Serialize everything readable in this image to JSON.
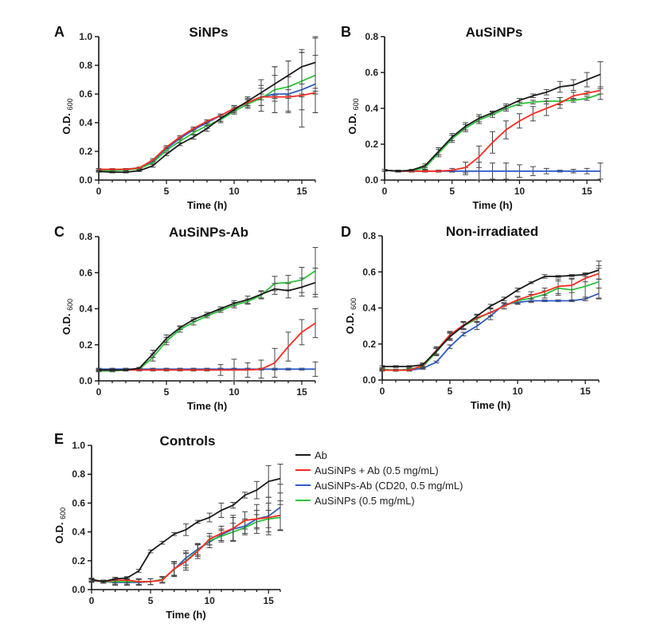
{
  "colors": {
    "Ab": "#1a1a1a",
    "AuSiNPs + Ab": "#ff2a1f",
    "AuSiNPs-Ab": "#2e5cc8",
    "AuSiNPs": "#2cc43c"
  },
  "legend": [
    {
      "key": "Ab",
      "label": "Ab",
      "color": "#1a1a1a"
    },
    {
      "key": "AuSiNPs + Ab",
      "label": "AuSiNPs + Ab (0.5 mg/mL)",
      "color": "#ff2a1f"
    },
    {
      "key": "AuSiNPs-Ab",
      "label": "AuSiNPs-Ab (CD20, 0.5 mg/mL)",
      "color": "#2e5cc8"
    },
    {
      "key": "AuSiNPs",
      "label": "AuSiNPs (0.5 mg/mL)",
      "color": "#2cc43c"
    }
  ],
  "chart_data": [
    {
      "panel": "A",
      "type": "line",
      "title": "SiNPs",
      "xlabel": "Time (h)",
      "ylabel": "O.D.",
      "ylabel_sub": "600",
      "xlim": [
        0,
        16
      ],
      "ylim": [
        0,
        1.0
      ],
      "xticks": [
        0,
        5,
        10,
        15
      ],
      "yticks": [
        "0.0",
        "0.2",
        "0.4",
        "0.6",
        "0.8",
        "1.0"
      ],
      "x": [
        0,
        1,
        2,
        3,
        4,
        5,
        6,
        7,
        8,
        9,
        10,
        11,
        12,
        13,
        14,
        15,
        16
      ],
      "series": [
        {
          "name": "Ab",
          "values": [
            0.06,
            0.055,
            0.055,
            0.065,
            0.1,
            0.18,
            0.25,
            0.3,
            0.36,
            0.43,
            0.49,
            0.55,
            0.61,
            0.67,
            0.73,
            0.79,
            0.82
          ],
          "err": [
            0.005,
            0.005,
            0.005,
            0.005,
            0.01,
            0.01,
            0.01,
            0.015,
            0.02,
            0.02,
            0.02,
            0.03,
            0.09,
            0.12,
            0.1,
            0.12,
            0.18
          ]
        },
        {
          "name": "AuSiNPs + Ab",
          "values": [
            0.075,
            0.075,
            0.075,
            0.085,
            0.14,
            0.23,
            0.3,
            0.36,
            0.41,
            0.45,
            0.5,
            0.54,
            0.58,
            0.58,
            0.58,
            0.59,
            0.61
          ],
          "err": [
            0.005,
            0.005,
            0.005,
            0.005,
            0.01,
            0.01,
            0.01,
            0.01,
            0.01,
            0.01,
            0.02,
            0.02,
            0.02,
            0.01,
            0.01,
            0.01,
            0.01
          ]
        },
        {
          "name": "AuSiNPs-Ab",
          "values": [
            0.075,
            0.07,
            0.075,
            0.085,
            0.13,
            0.22,
            0.29,
            0.35,
            0.4,
            0.45,
            0.5,
            0.54,
            0.58,
            0.6,
            0.6,
            0.63,
            0.67
          ],
          "err": [
            0.005,
            0.005,
            0.005,
            0.005,
            0.01,
            0.01,
            0.01,
            0.01,
            0.01,
            0.01,
            0.02,
            0.03,
            0.06,
            0.13,
            0.12,
            0.26,
            0.2
          ]
        },
        {
          "name": "AuSiNPs",
          "values": [
            0.065,
            0.065,
            0.07,
            0.08,
            0.12,
            0.21,
            0.27,
            0.33,
            0.38,
            0.42,
            0.48,
            0.53,
            0.57,
            0.63,
            0.65,
            0.69,
            0.73
          ],
          "err": [
            0.005,
            0.005,
            0.005,
            0.005,
            0.01,
            0.01,
            0.01,
            0.01,
            0.02,
            0.02,
            0.02,
            0.03,
            0.09,
            0.16,
            0.18,
            0.2,
            0.26
          ]
        }
      ]
    },
    {
      "panel": "B",
      "type": "line",
      "title": "AuSiNPs",
      "xlabel": "Time (h)",
      "ylabel": "O.D.",
      "ylabel_sub": "600",
      "xlim": [
        0,
        16
      ],
      "ylim": [
        0,
        0.8
      ],
      "xticks": [
        0,
        5,
        10,
        15
      ],
      "yticks": [
        "0.0",
        "0.2",
        "0.4",
        "0.6",
        "0.8"
      ],
      "x": [
        0,
        1,
        2,
        3,
        4,
        5,
        6,
        7,
        8,
        9,
        10,
        11,
        12,
        13,
        14,
        15,
        16
      ],
      "series": [
        {
          "name": "Ab",
          "values": [
            0.055,
            0.05,
            0.055,
            0.08,
            0.16,
            0.24,
            0.3,
            0.345,
            0.375,
            0.41,
            0.445,
            0.47,
            0.49,
            0.52,
            0.53,
            0.56,
            0.59
          ],
          "err": [
            0.005,
            0.005,
            0.005,
            0.01,
            0.02,
            0.02,
            0.02,
            0.02,
            0.01,
            0.015,
            0.01,
            0.01,
            0.015,
            0.03,
            0.03,
            0.04,
            0.07
          ]
        },
        {
          "name": "AuSiNPs + Ab",
          "values": [
            0.055,
            0.05,
            0.05,
            0.05,
            0.05,
            0.055,
            0.07,
            0.13,
            0.21,
            0.28,
            0.33,
            0.37,
            0.4,
            0.43,
            0.47,
            0.485,
            0.5
          ],
          "err": [
            0.005,
            0.005,
            0.005,
            0.005,
            0.005,
            0.01,
            0.03,
            0.06,
            0.06,
            0.05,
            0.04,
            0.04,
            0.04,
            0.03,
            0.02,
            0.01,
            0.02
          ]
        },
        {
          "name": "AuSiNPs-Ab",
          "values": [
            0.055,
            0.05,
            0.05,
            0.05,
            0.05,
            0.05,
            0.05,
            0.05,
            0.05,
            0.05,
            0.05,
            0.05,
            0.05,
            0.05,
            0.05,
            0.05,
            0.05
          ],
          "err": [
            0.005,
            0.005,
            0.005,
            0.005,
            0.005,
            0.005,
            0.02,
            0.05,
            0.045,
            0.045,
            0.035,
            0.025,
            0.015,
            0.005,
            0.01,
            0.015,
            0.045
          ]
        },
        {
          "name": "AuSiNPs",
          "values": [
            0.055,
            0.05,
            0.05,
            0.07,
            0.15,
            0.23,
            0.29,
            0.335,
            0.365,
            0.4,
            0.425,
            0.435,
            0.44,
            0.44,
            0.445,
            0.455,
            0.48
          ],
          "err": [
            0.005,
            0.005,
            0.005,
            0.01,
            0.02,
            0.02,
            0.02,
            0.02,
            0.015,
            0.015,
            0.01,
            0.01,
            0.015,
            0.02,
            0.01,
            0.01,
            0.03
          ]
        }
      ]
    },
    {
      "panel": "C",
      "type": "line",
      "title": "AuSiNPs-Ab",
      "xlabel": "Time (h)",
      "ylabel": "O.D.",
      "ylabel_sub": "600",
      "xlim": [
        0,
        16
      ],
      "ylim": [
        0,
        0.8
      ],
      "xticks": [
        0,
        5,
        10,
        15
      ],
      "yticks": [
        "0.0",
        "0.2",
        "0.4",
        "0.6",
        "0.8"
      ],
      "x": [
        0,
        1,
        2,
        3,
        4,
        5,
        6,
        7,
        8,
        9,
        10,
        11,
        12,
        13,
        14,
        15,
        16
      ],
      "series": [
        {
          "name": "Ab",
          "values": [
            0.06,
            0.06,
            0.06,
            0.07,
            0.15,
            0.235,
            0.295,
            0.34,
            0.37,
            0.4,
            0.43,
            0.45,
            0.48,
            0.51,
            0.5,
            0.52,
            0.545
          ],
          "err": [
            0.005,
            0.005,
            0.005,
            0.005,
            0.02,
            0.02,
            0.01,
            0.01,
            0.01,
            0.01,
            0.015,
            0.02,
            0.02,
            0.03,
            0.04,
            0.05,
            0.08
          ]
        },
        {
          "name": "AuSiNPs + Ab",
          "values": [
            0.06,
            0.06,
            0.06,
            0.06,
            0.06,
            0.06,
            0.06,
            0.06,
            0.06,
            0.06,
            0.06,
            0.06,
            0.065,
            0.1,
            0.19,
            0.27,
            0.32
          ],
          "err": [
            0.005,
            0.005,
            0.005,
            0.005,
            0.005,
            0.005,
            0.005,
            0.005,
            0.005,
            0.03,
            0.06,
            0.04,
            0.05,
            0.08,
            0.08,
            0.07,
            0.08
          ]
        },
        {
          "name": "AuSiNPs-Ab",
          "values": [
            0.065,
            0.065,
            0.065,
            0.065,
            0.065,
            0.065,
            0.065,
            0.065,
            0.065,
            0.065,
            0.065,
            0.065,
            0.065,
            0.065,
            0.065,
            0.065,
            0.065
          ],
          "err": [
            0.005,
            0.005,
            0.005,
            0.005,
            0.005,
            0.005,
            0.005,
            0.005,
            0.005,
            0.005,
            0.005,
            0.005,
            0.005,
            0.005,
            0.005,
            0.005,
            0.04
          ]
        },
        {
          "name": "AuSiNPs",
          "values": [
            0.055,
            0.055,
            0.06,
            0.065,
            0.13,
            0.22,
            0.285,
            0.325,
            0.36,
            0.39,
            0.42,
            0.44,
            0.475,
            0.54,
            0.545,
            0.56,
            0.61
          ],
          "err": [
            0.005,
            0.005,
            0.005,
            0.005,
            0.02,
            0.02,
            0.015,
            0.015,
            0.01,
            0.01,
            0.015,
            0.015,
            0.02,
            0.04,
            0.04,
            0.07,
            0.13
          ]
        }
      ]
    },
    {
      "panel": "D",
      "type": "line",
      "title": "Non-irradiated",
      "xlabel": "Time (h)",
      "ylabel": "O.D.",
      "ylabel_sub": "600",
      "xlim": [
        0,
        16
      ],
      "ylim": [
        0,
        0.8
      ],
      "xticks": [
        0,
        5,
        10,
        15
      ],
      "yticks": [
        "0.0",
        "0.2",
        "0.4",
        "0.6",
        "0.8"
      ],
      "x": [
        0,
        1,
        2,
        3,
        4,
        5,
        6,
        7,
        8,
        9,
        10,
        11,
        12,
        13,
        14,
        15,
        16
      ],
      "series": [
        {
          "name": "Ab",
          "values": [
            0.075,
            0.075,
            0.075,
            0.085,
            0.16,
            0.24,
            0.3,
            0.355,
            0.41,
            0.45,
            0.5,
            0.54,
            0.575,
            0.575,
            0.58,
            0.585,
            0.61
          ],
          "err": [
            0.005,
            0.005,
            0.005,
            0.01,
            0.02,
            0.02,
            0.02,
            0.01,
            0.01,
            0.01,
            0.01,
            0.005,
            0.01,
            0.005,
            0.005,
            0.01,
            0.05
          ]
        },
        {
          "name": "AuSiNPs + Ab",
          "values": [
            0.055,
            0.055,
            0.055,
            0.08,
            0.165,
            0.25,
            0.305,
            0.345,
            0.375,
            0.41,
            0.445,
            0.47,
            0.49,
            0.52,
            0.525,
            0.565,
            0.59
          ],
          "err": [
            0.005,
            0.005,
            0.005,
            0.01,
            0.02,
            0.02,
            0.02,
            0.02,
            0.02,
            0.015,
            0.02,
            0.02,
            0.02,
            0.04,
            0.04,
            0.02,
            0.03
          ]
        },
        {
          "name": "AuSiNPs-Ab",
          "values": [
            0.055,
            0.055,
            0.055,
            0.065,
            0.1,
            0.185,
            0.255,
            0.3,
            0.355,
            0.42,
            0.43,
            0.44,
            0.44,
            0.44,
            0.44,
            0.45,
            0.48
          ],
          "err": [
            0.005,
            0.005,
            0.005,
            0.005,
            0.005,
            0.01,
            0.01,
            0.02,
            0.02,
            0.01,
            0.01,
            0.01,
            0.005,
            0.005,
            0.005,
            0.01,
            0.03
          ]
        },
        {
          "name": "AuSiNPs",
          "values": [
            0.06,
            0.055,
            0.06,
            0.075,
            0.155,
            0.245,
            0.3,
            0.34,
            0.375,
            0.41,
            0.44,
            0.455,
            0.475,
            0.51,
            0.5,
            0.52,
            0.545
          ],
          "err": [
            0.005,
            0.005,
            0.005,
            0.01,
            0.02,
            0.02,
            0.02,
            0.02,
            0.02,
            0.015,
            0.02,
            0.02,
            0.02,
            0.04,
            0.06,
            0.07,
            0.09
          ]
        }
      ]
    },
    {
      "panel": "E",
      "type": "line",
      "title": "Controls",
      "xlabel": "Time (h)",
      "ylabel": "O.D.",
      "ylabel_sub": "600",
      "xlim": [
        0,
        16
      ],
      "ylim": [
        0,
        1.0
      ],
      "xticks": [
        0,
        5,
        10,
        15
      ],
      "yticks": [
        "0.0",
        "0.2",
        "0.4",
        "0.6",
        "0.8",
        "1.0"
      ],
      "x": [
        0,
        1,
        2,
        3,
        4,
        5,
        6,
        7,
        8,
        9,
        10,
        11,
        12,
        13,
        14,
        15,
        16
      ],
      "series": [
        {
          "name": "Ab",
          "values": [
            0.07,
            0.055,
            0.075,
            0.08,
            0.13,
            0.265,
            0.325,
            0.385,
            0.415,
            0.47,
            0.5,
            0.55,
            0.585,
            0.655,
            0.69,
            0.75,
            0.77
          ],
          "err": [
            0.01,
            0.01,
            0.01,
            0.01,
            0.01,
            0.01,
            0.01,
            0.01,
            0.04,
            0.01,
            0.03,
            0.05,
            0.02,
            0.02,
            0.06,
            0.11,
            0.1
          ]
        },
        {
          "name": "AuSiNPs + Ab",
          "values": [
            0.065,
            0.055,
            0.065,
            0.065,
            0.055,
            0.055,
            0.065,
            0.145,
            0.195,
            0.265,
            0.35,
            0.39,
            0.425,
            0.48,
            0.49,
            0.5,
            0.515
          ],
          "err": [
            0.01,
            0.01,
            0.02,
            0.02,
            0.02,
            0.02,
            0.02,
            0.05,
            0.06,
            0.05,
            0.04,
            0.05,
            0.09,
            0.06,
            0.1,
            0.1,
            0.1
          ]
        },
        {
          "name": "AuSiNPs-Ab",
          "values": [
            0.065,
            0.055,
            0.05,
            0.05,
            0.05,
            0.055,
            0.07,
            0.14,
            0.22,
            0.28,
            0.33,
            0.38,
            0.42,
            0.44,
            0.49,
            0.51,
            0.57
          ],
          "err": [
            0.01,
            0.01,
            0.02,
            0.02,
            0.02,
            0.02,
            0.02,
            0.05,
            0.05,
            0.04,
            0.04,
            0.04,
            0.08,
            0.05,
            0.06,
            0.13,
            0.16
          ]
        },
        {
          "name": "AuSiNPs",
          "values": [
            0.06,
            0.055,
            0.055,
            0.055,
            0.055,
            0.055,
            0.07,
            0.14,
            0.2,
            0.27,
            0.34,
            0.37,
            0.4,
            0.43,
            0.47,
            0.49,
            0.5
          ],
          "err": [
            0.01,
            0.01,
            0.02,
            0.02,
            0.02,
            0.02,
            0.02,
            0.04,
            0.05,
            0.04,
            0.03,
            0.04,
            0.06,
            0.05,
            0.05,
            0.06,
            0.09
          ]
        }
      ]
    }
  ]
}
